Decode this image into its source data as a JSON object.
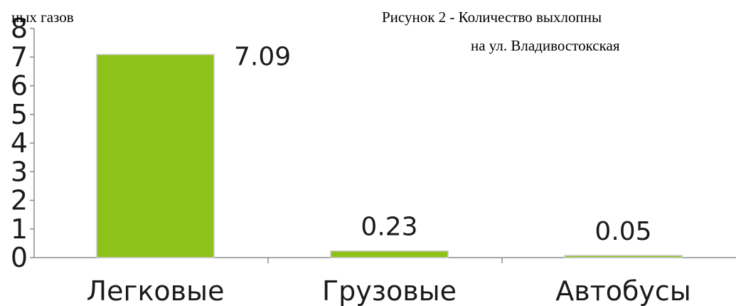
{
  "caption": {
    "left_fragment": "ных газов",
    "right_line1": "Рисунок 2 - Количество выхлопны",
    "right_line2": "на ул. Владивостокская"
  },
  "chart_data": {
    "type": "bar",
    "categories": [
      "Легковые",
      "Грузовые",
      "Автобусы"
    ],
    "values": [
      7.09,
      0.23,
      0.05
    ],
    "data_labels": [
      "7.09",
      "0.23",
      "0.05"
    ],
    "y_ticks": [
      "0",
      "1",
      "2",
      "3",
      "4",
      "5",
      "6",
      "7",
      "8"
    ],
    "ylim": [
      0,
      8
    ],
    "bar_color": "#8dc21a",
    "bar_border_color": "#cccccc",
    "grid": false,
    "legend": "none"
  }
}
